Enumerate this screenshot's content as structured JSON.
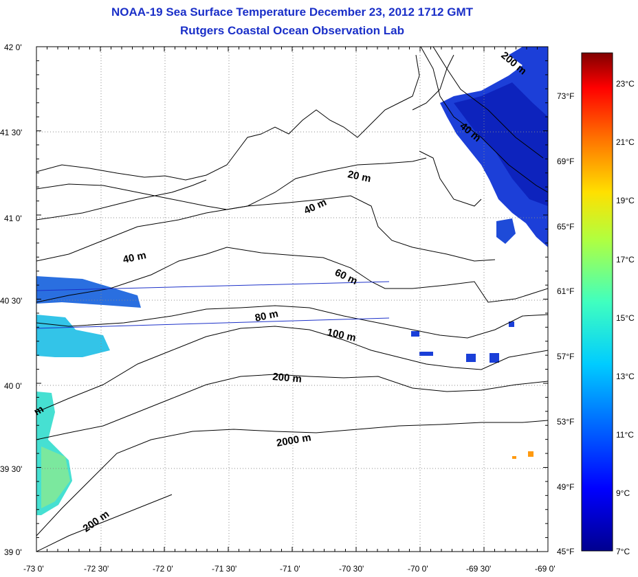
{
  "title": "NOAA-19 Sea Surface Temperature December 23, 2012 1712 GMT",
  "subtitle": "Rutgers Coastal Ocean Observation Lab",
  "map": {
    "lat_labels": [
      "42 0'",
      "41 30'",
      "41 0'",
      "40 30'",
      "40 0'",
      "39 30'",
      "39 0'"
    ],
    "lon_labels": [
      "-73 0'",
      "-72 30'",
      "-72 0'",
      "-71 30'",
      "-71 0'",
      "-70 30'",
      "-70 0'",
      "-69 30'",
      "-69 0'"
    ],
    "lat_range": [
      39.0,
      42.0
    ],
    "lon_range": [
      -73.0,
      -69.0
    ],
    "contour_labels": [
      "20 m",
      "40 m",
      "40 m",
      "60 m",
      "80 m",
      "100 m",
      "200 m",
      "2000 m",
      "200 m",
      "200 m",
      "40 m",
      "m"
    ]
  },
  "colorbar": {
    "celsius_labels": [
      "23°C",
      "21°C",
      "19°C",
      "17°C",
      "15°C",
      "13°C",
      "11°C",
      "9°C",
      "7°C"
    ],
    "fahrenheit_labels": [
      "73°F",
      "69°F",
      "65°F",
      "61°F",
      "57°F",
      "53°F",
      "49°F",
      "45°F"
    ],
    "range_c": [
      7,
      24
    ],
    "gradient": [
      "#00008f",
      "#0000ff",
      "#0080ff",
      "#00ffff",
      "#80ff80",
      "#ffff00",
      "#ff8000",
      "#ff0000",
      "#800000"
    ]
  }
}
